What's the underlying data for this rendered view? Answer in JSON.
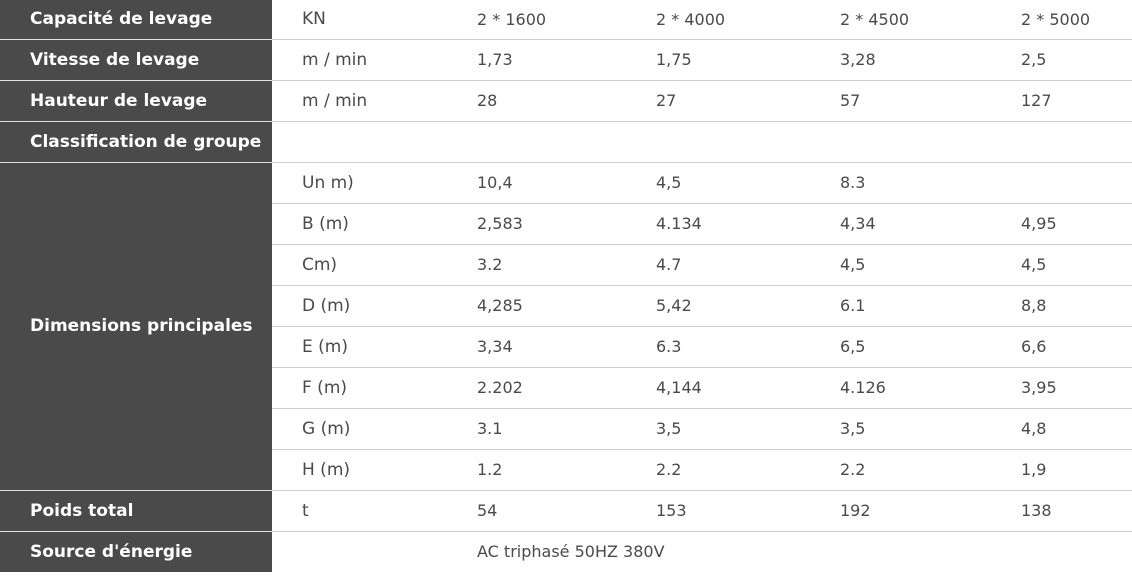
{
  "rows": [
    {
      "label": "Capacité de levage",
      "unit": "KN",
      "values": [
        "2 * 1600",
        "2 * 4000",
        "2 * 4500",
        "2 * 5000"
      ]
    },
    {
      "label": "Vitesse de levage",
      "unit": "m / min",
      "values": [
        "1,73",
        "1,75",
        "3,28",
        "2,5"
      ]
    },
    {
      "label": "Hauteur de levage",
      "unit": "m / min",
      "values": [
        "28",
        "27",
        "57",
        "127"
      ]
    },
    {
      "label": "Classification de groupe",
      "unit": "",
      "values": [
        "",
        "",
        "",
        ""
      ]
    }
  ],
  "dimensions": {
    "label": "Dimensions principales",
    "rows": [
      {
        "unit": "Un m)",
        "values": [
          "10,4",
          "4,5",
          "8.3",
          ""
        ]
      },
      {
        "unit": "B (m)",
        "values": [
          "2,583",
          "4.134",
          "4,34",
          "4,95"
        ]
      },
      {
        "unit": "Cm)",
        "values": [
          "3.2",
          "4.7",
          "4,5",
          "4,5"
        ]
      },
      {
        "unit": "D (m)",
        "values": [
          "4,285",
          "5,42",
          "6.1",
          "8,8"
        ]
      },
      {
        "unit": "E (m)",
        "values": [
          "3,34",
          "6.3",
          "6,5",
          "6,6"
        ]
      },
      {
        "unit": "F (m)",
        "values": [
          "2.202",
          "4,144",
          "4.126",
          "3,95"
        ]
      },
      {
        "unit": "G (m)",
        "values": [
          "3.1",
          "3,5",
          "3,5",
          "4,8"
        ]
      },
      {
        "unit": "H (m)",
        "values": [
          "1.2",
          "2.2",
          "2.2",
          "1,9"
        ]
      }
    ]
  },
  "weight": {
    "label": "Poids total",
    "unit": "t",
    "values": [
      "54",
      "153",
      "192",
      "138"
    ]
  },
  "power": {
    "label": "Source d'énergie",
    "value": "AC triphasé 50HZ 380V"
  },
  "colors": {
    "header_bg": "#4a4a4a",
    "header_text": "#ffffff",
    "body_text": "#4a4a4a",
    "divider": "#cfcfcf"
  }
}
